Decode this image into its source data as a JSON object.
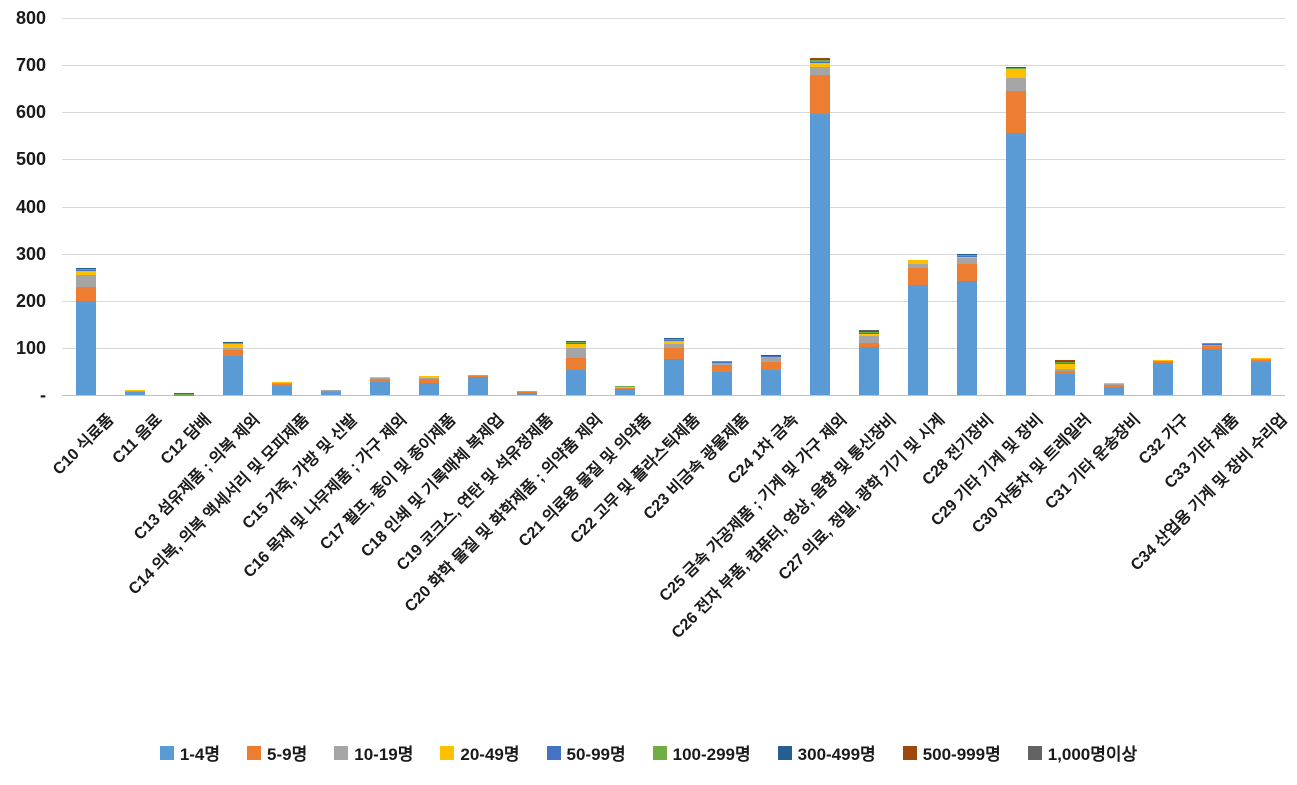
{
  "chart_data": {
    "type": "bar",
    "stacked": true,
    "title": "",
    "xlabel": "",
    "ylabel": "",
    "grid": true,
    "legend_position": "bottom",
    "categories": [
      "C10 식료품",
      "C11 음료",
      "C12 담배",
      "C13 섬유제품 ; 의복 제외",
      "C14 의복, 의복 액세서리 및 모피제품",
      "C15 가죽, 가방 및 신발",
      "C16 목재 및 나무제품 ; 가구 제외",
      "C17 펄프, 종이 및 종이제품",
      "C18 인쇄 및 기록매체 복제업",
      "C19 코크스, 연탄 및 석유정제품",
      "C20 화학 물질 및 화학제품 ; 의약품 제외",
      "C21 의료용 물질 및 의약품",
      "C22 고무 및 플라스틱제품",
      "C23 비금속 광물제품",
      "C24 1차 금속",
      "C25 금속 가공제품 ; 기계 및 가구 제외",
      "C26 전자 부품, 컴퓨터, 영상, 음향 및 통신장비",
      "C27 의료, 정밀, 광학 기기 및 시계",
      "C28 전기장비",
      "C29 기타 기계 및 장비",
      "C30 자동차 및 트레일러",
      "C31 기타 운송장비",
      "C32 가구",
      "C33 기타 제품",
      "C34 산업용 기계 및 장비 수리업"
    ],
    "series": [
      {
        "name": "1-4명",
        "color": "#5B9BD5",
        "values": [
          200,
          7,
          1,
          82,
          20,
          8,
          28,
          26,
          38,
          6,
          53,
          12,
          76,
          48,
          53,
          597,
          101,
          233,
          242,
          556,
          45,
          16,
          68,
          97,
          71
        ]
      },
      {
        "name": "5-9명",
        "color": "#ED7D31",
        "values": [
          30,
          1,
          0,
          13,
          3,
          1,
          8,
          9,
          4,
          1,
          25,
          2,
          23,
          15,
          18,
          83,
          10,
          36,
          36,
          89,
          5,
          7,
          5,
          9,
          3
        ]
      },
      {
        "name": "10-19명",
        "color": "#A5A5A5",
        "values": [
          25,
          1,
          0,
          4,
          2,
          1,
          1,
          2,
          1,
          2,
          21,
          2,
          9,
          5,
          9,
          16,
          14,
          9,
          12,
          28,
          6,
          1,
          0,
          1,
          2
        ]
      },
      {
        "name": "20-49명",
        "color": "#FFC000",
        "values": [
          8,
          1,
          0,
          9,
          2,
          0,
          1,
          4,
          0,
          0,
          10,
          1,
          7,
          2,
          2,
          8,
          4,
          9,
          5,
          18,
          9,
          2,
          2,
          1,
          2
        ]
      },
      {
        "name": "50-99명",
        "color": "#4472C4",
        "values": [
          2,
          0,
          0,
          0,
          0,
          0,
          0,
          0,
          0,
          0,
          2,
          0,
          2,
          1,
          1,
          3,
          2,
          0,
          1,
          0,
          2,
          0,
          0,
          1,
          0
        ]
      },
      {
        "name": "100-299명",
        "color": "#70AD47",
        "values": [
          3,
          0,
          1,
          3,
          0,
          0,
          0,
          0,
          0,
          0,
          2,
          2,
          2,
          1,
          0,
          3,
          3,
          0,
          2,
          2,
          3,
          0,
          0,
          1,
          0
        ]
      },
      {
        "name": "300-499명",
        "color": "#255E91",
        "values": [
          2,
          0,
          0,
          1,
          0,
          0,
          0,
          0,
          0,
          0,
          2,
          0,
          1,
          0,
          1,
          2,
          2,
          0,
          2,
          2,
          2,
          0,
          0,
          0,
          0
        ]
      },
      {
        "name": "500-999명",
        "color": "#9E480E",
        "values": [
          0,
          0,
          2,
          0,
          0,
          0,
          0,
          0,
          0,
          0,
          0,
          0,
          0,
          0,
          0,
          3,
          0,
          0,
          0,
          0,
          3,
          0,
          0,
          0,
          0
        ]
      },
      {
        "name": "1,000명이상",
        "color": "#636363",
        "values": [
          0,
          0,
          0,
          0,
          0,
          0,
          0,
          0,
          0,
          0,
          0,
          0,
          0,
          0,
          0,
          0,
          1,
          0,
          0,
          0,
          0,
          0,
          0,
          0,
          0
        ]
      }
    ],
    "y_axis": {
      "min": 0,
      "max": 800,
      "step": 100,
      "tick_labels": [
        "800",
        "700",
        "600",
        "500",
        "400",
        "300",
        "200",
        "100",
        "-"
      ]
    }
  }
}
